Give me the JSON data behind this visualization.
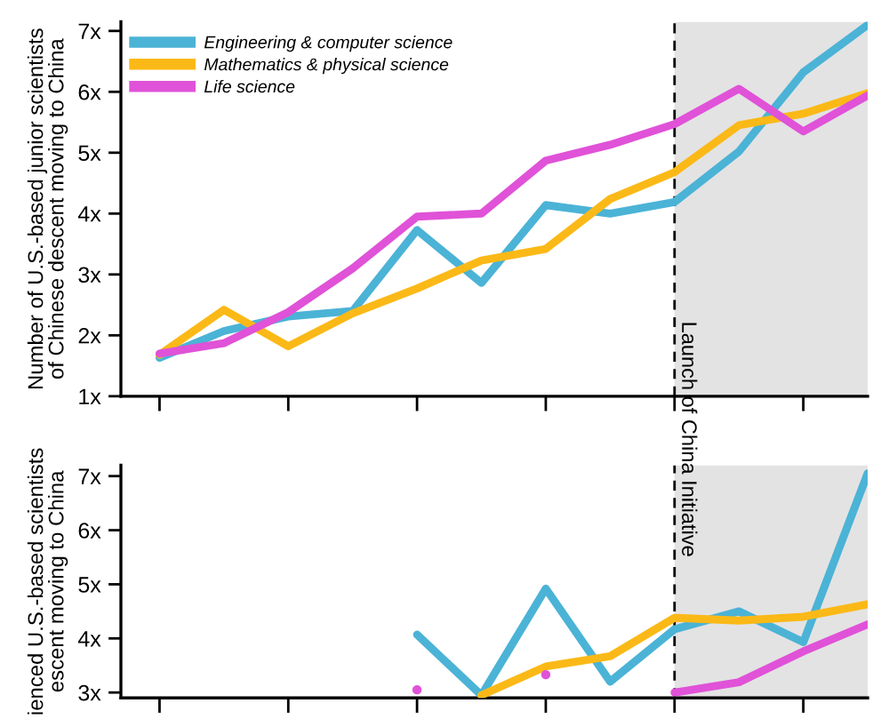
{
  "chart_data": [
    {
      "type": "line",
      "ylabel": "Number of U.S.-based junior scientists\nof Chinese descent moving to China",
      "categories": [
        null,
        null,
        null,
        null,
        null,
        null,
        null,
        null,
        null,
        null,
        null,
        null
      ],
      "series": [
        {
          "name": "Engineering & computer science",
          "color": "#4bb3d6",
          "values": [
            1.63,
            2.07,
            2.31,
            2.4,
            3.73,
            2.86,
            4.14,
            4.0,
            4.19,
            5.02,
            6.32,
            7.1
          ]
        },
        {
          "name": "Mathematics & physical science",
          "color": "#fbb917",
          "values": [
            1.68,
            2.42,
            1.82,
            2.36,
            2.77,
            3.23,
            3.42,
            4.24,
            4.68,
            5.45,
            5.64,
            5.98
          ]
        },
        {
          "name": "Life science",
          "color": "#e052d8",
          "values": [
            1.7,
            1.87,
            2.38,
            3.1,
            3.95,
            4.0,
            4.87,
            5.13,
            5.47,
            6.05,
            5.35,
            5.94
          ]
        }
      ],
      "ylim": [
        1,
        7.15
      ],
      "yticks": [
        {
          "value": 1,
          "label": "1x"
        },
        {
          "value": 2,
          "label": "2x"
        },
        {
          "value": 3,
          "label": "3x"
        },
        {
          "value": 4,
          "label": "4x"
        },
        {
          "value": 5,
          "label": "5x"
        },
        {
          "value": 6,
          "label": "6x"
        },
        {
          "value": 7,
          "label": "7x"
        }
      ],
      "annotations": [
        "Launch of China Initiative"
      ],
      "legend": "top left",
      "tick_labels": "y",
      "grid": false,
      "marker": "none",
      "line_style": "solid"
    },
    {
      "type": "line",
      "ylabel": "ienced U.S.-based scientists\nescent moving to China",
      "categories": [
        null,
        null,
        null,
        null,
        null,
        null,
        null,
        null,
        null,
        null,
        null,
        null
      ],
      "series": [
        {
          "color": "#4bb3d6",
          "values": [
            null,
            null,
            null,
            null,
            4.07,
            2.95,
            4.92,
            3.2,
            4.17,
            4.5,
            3.93,
            7.05
          ]
        },
        {
          "color": "#fbb917",
          "values": [
            null,
            null,
            null,
            null,
            null,
            2.95,
            3.48,
            3.67,
            4.38,
            4.33,
            4.4,
            4.63
          ]
        },
        {
          "color": "#e052d8",
          "values": [
            null,
            null,
            null,
            null,
            3.05,
            null,
            3.33,
            null,
            3.0,
            3.19,
            3.76,
            4.26
          ]
        }
      ],
      "ylim": [
        2.9,
        7.2
      ],
      "yticks": [
        {
          "value": 3,
          "label": "3x"
        },
        {
          "value": 4,
          "label": "4x"
        },
        {
          "value": 5,
          "label": "5x"
        },
        {
          "value": 6,
          "label": "6x"
        },
        {
          "value": 7,
          "label": "7x"
        }
      ],
      "tick_labels": "y",
      "grid": false,
      "marker": "none",
      "line_style": "solid"
    }
  ]
}
